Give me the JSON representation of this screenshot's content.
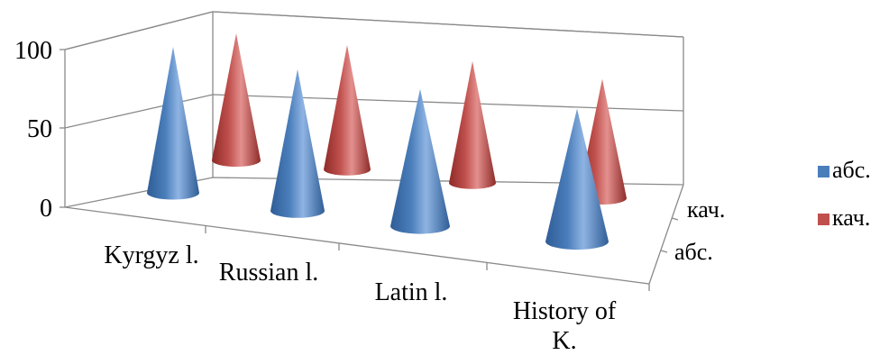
{
  "chart_data": {
    "type": "bar",
    "shape": "3d-cone",
    "categories": [
      "Kyrgyz l.",
      "Russian l.",
      "Latin l.",
      "History of K."
    ],
    "series": [
      {
        "name": "абс.",
        "values": [
          100,
          100,
          100,
          100
        ],
        "color": "#4a7ebb"
      },
      {
        "name": "кач.",
        "values": [
          80,
          80,
          80,
          80
        ],
        "color": "#c0504d"
      }
    ],
    "depth_labels": [
      "абс.",
      "кач."
    ],
    "y_ticks": [
      "0",
      "50",
      "100"
    ],
    "ylim": [
      0,
      100
    ],
    "grid": true,
    "legend_position": "right"
  }
}
